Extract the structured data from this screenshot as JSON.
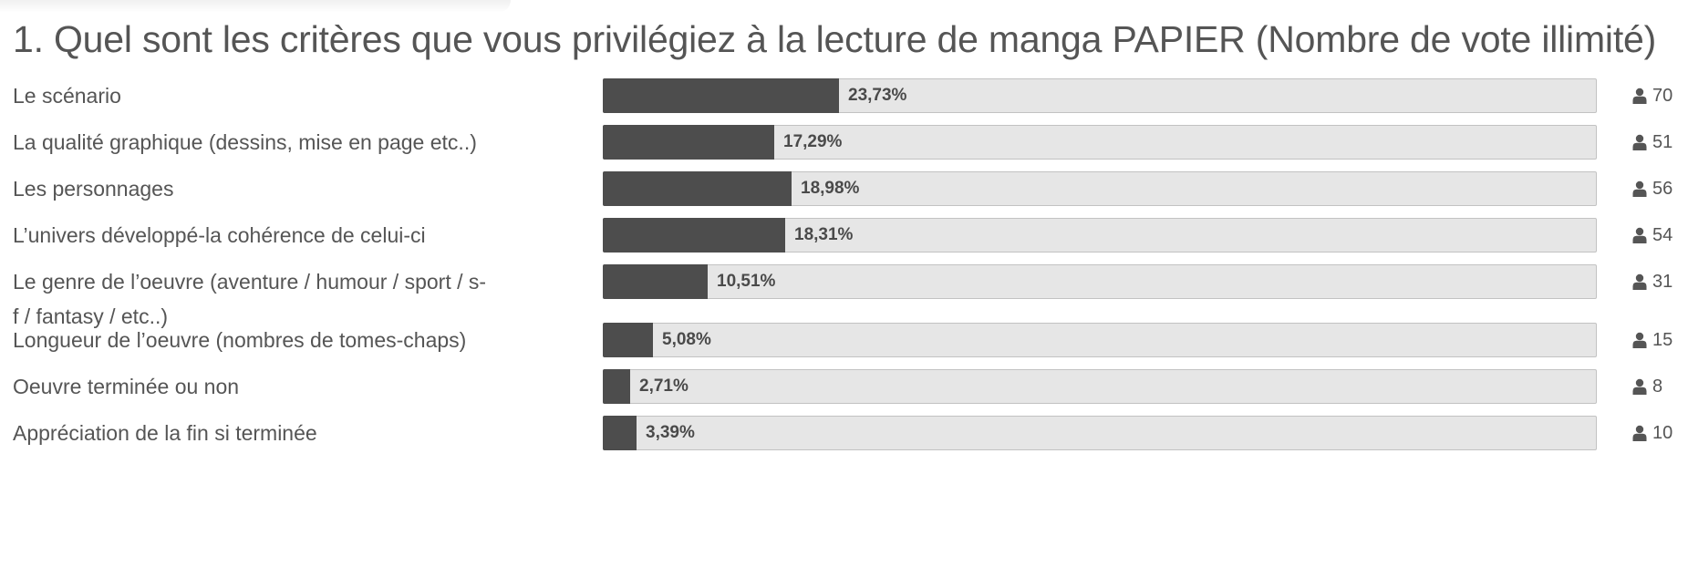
{
  "colors": {
    "bar_fill": "#4d4d4d",
    "bar_track": "#e6e6e6",
    "text": "#555555"
  },
  "chart_data": {
    "type": "bar",
    "orientation": "horizontal",
    "title": "1. Quel sont les critères que vous privilégiez à la lecture de manga PAPIER (Nombre de vote illimité)",
    "categories": [
      "Le scénario",
      "La qualité graphique (dessins, mise en page etc..)",
      "Les personnages",
      "L’univers développé-la cohérence de celui-ci",
      "Le genre de l’oeuvre (aventure / humour / sport / s-f / fantasy / etc..)",
      "Longueur de l’oeuvre (nombres de tomes-chaps)",
      "Oeuvre terminée ou non",
      "Appréciation de la fin si terminée"
    ],
    "values": [
      23.73,
      17.29,
      18.98,
      18.31,
      10.51,
      5.08,
      2.71,
      3.39
    ],
    "value_labels": [
      "23,73%",
      "17,29%",
      "18,98%",
      "18,31%",
      "10,51%",
      "5,08%",
      "2,71%",
      "3,39%"
    ],
    "counts": [
      "70",
      "51",
      "56",
      "54",
      "31",
      "15",
      "8",
      "10"
    ],
    "count_icon": "user-icon",
    "xlim": [
      0,
      100
    ]
  }
}
